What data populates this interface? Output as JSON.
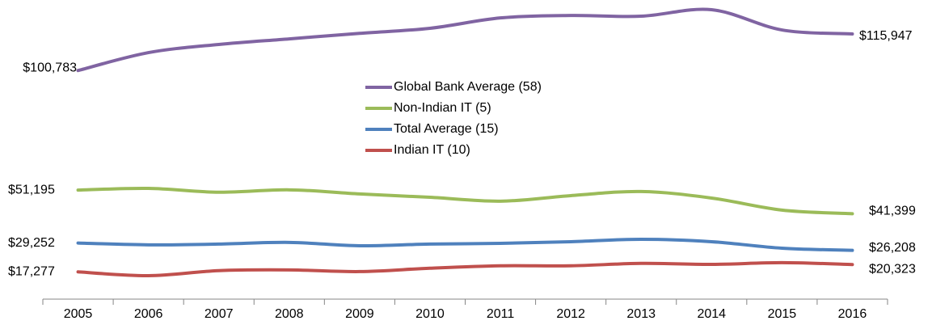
{
  "chart_data": {
    "type": "line",
    "categories": [
      "2005",
      "2006",
      "2007",
      "2008",
      "2009",
      "2010",
      "2011",
      "2012",
      "2013",
      "2014",
      "2015",
      "2016"
    ],
    "series": [
      {
        "name": "Global Bank Average (58)",
        "color": "#8064a2",
        "values": [
          100783,
          108200,
          111600,
          113900,
          116200,
          118300,
          122600,
          123600,
          123300,
          126000,
          117600,
          115947
        ],
        "value_labels": [
          "$100,783",
          null,
          null,
          null,
          null,
          null,
          null,
          null,
          null,
          null,
          null,
          "$115,947"
        ]
      },
      {
        "name": "Non-Indian IT (5)",
        "color": "#9bbb59",
        "values": [
          51195,
          51900,
          50300,
          51300,
          49600,
          48200,
          46600,
          48900,
          50600,
          47900,
          42900,
          41399
        ],
        "value_labels": [
          "$51,195",
          null,
          null,
          null,
          null,
          null,
          null,
          null,
          null,
          null,
          null,
          "$41,399"
        ]
      },
      {
        "name": "Total Average (15)",
        "color": "#4f81bd",
        "values": [
          29252,
          28500,
          28800,
          29500,
          28100,
          28800,
          29100,
          29800,
          30800,
          29800,
          27100,
          26208
        ],
        "value_labels": [
          "$29,252",
          null,
          null,
          null,
          null,
          null,
          null,
          null,
          null,
          null,
          null,
          "$26,208"
        ]
      },
      {
        "name": "Indian IT (10)",
        "color": "#c0504d",
        "values": [
          17277,
          15700,
          17800,
          18100,
          17400,
          18800,
          19800,
          19800,
          20800,
          20400,
          21100,
          20323
        ],
        "value_labels": [
          "$17,277",
          null,
          null,
          null,
          null,
          null,
          null,
          null,
          null,
          null,
          null,
          "$20,323"
        ]
      }
    ]
  }
}
